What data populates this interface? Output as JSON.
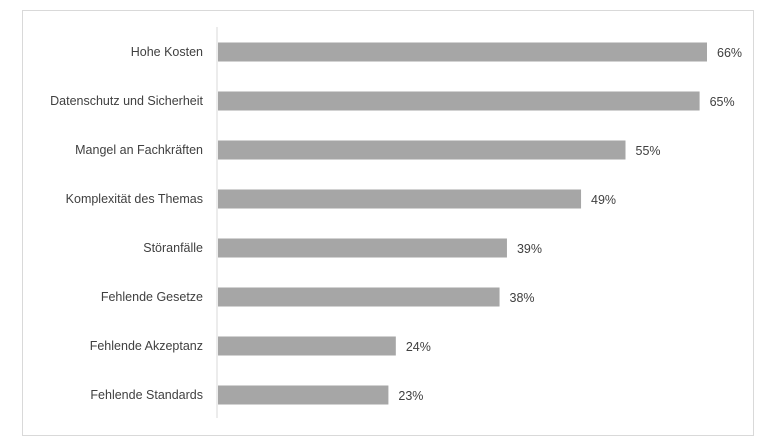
{
  "chart_data": {
    "type": "bar",
    "orientation": "horizontal",
    "categories": [
      "Hohe Kosten",
      "Datenschutz und Sicherheit",
      "Mangel an Fachkräften",
      "Komplexität des Themas",
      "Störanfälle",
      "Fehlende Gesetze",
      "Fehlende Akzeptanz",
      "Fehlende Standards"
    ],
    "values": [
      66,
      65,
      55,
      49,
      39,
      38,
      24,
      23
    ],
    "value_labels": [
      "66%",
      "65%",
      "55%",
      "49%",
      "39%",
      "38%",
      "24%",
      "23%"
    ],
    "unit": "%",
    "title": "",
    "xlabel": "",
    "ylabel": "",
    "xlim": [
      0,
      66
    ],
    "grid": false,
    "legend": "none",
    "colors": {
      "bar": "#a6a6a6",
      "axis": "#d9d9d9",
      "text": "#404040"
    }
  }
}
